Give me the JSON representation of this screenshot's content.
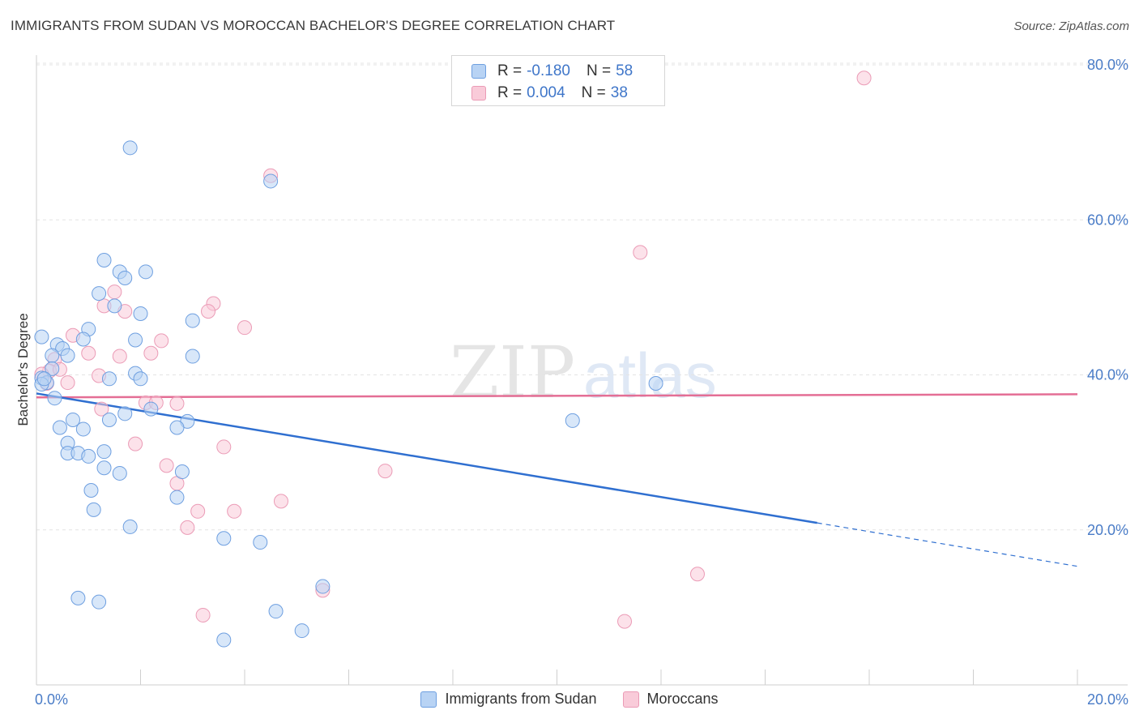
{
  "title": "IMMIGRANTS FROM SUDAN VS MOROCCAN BACHELOR'S DEGREE CORRELATION CHART",
  "source": "Source: ZipAtlas.com",
  "watermark": {
    "zip": "ZIP",
    "atlas": "atlas"
  },
  "colors": {
    "sudan_fill": "#b8d3f4",
    "sudan_stroke": "#6e9fe0",
    "sudan_line": "#2f6fd0",
    "moroccan_fill": "#f9cbd9",
    "moroccan_stroke": "#eb9bb6",
    "moroccan_line": "#e46e95",
    "tick_text": "#4a7cc7",
    "grid": "#e4e4e4"
  },
  "legend": {
    "rows": [
      {
        "r_label": "R =",
        "r_value": "-0.180",
        "n_label": "N =",
        "n_value": "58"
      },
      {
        "r_label": "R =",
        "r_value": "0.004",
        "n_label": "N =",
        "n_value": "38"
      }
    ]
  },
  "bottom_legend": {
    "sudan": "Immigrants from Sudan",
    "moroccan": "Moroccans"
  },
  "chart_data": {
    "type": "scatter",
    "title": "IMMIGRANTS FROM SUDAN VS MOROCCAN BACHELOR'S DEGREE CORRELATION CHART",
    "xlabel": "",
    "ylabel": "Bachelor's Degree",
    "xlim": [
      0,
      20
    ],
    "ylim": [
      0,
      82
    ],
    "x_tick_labels": [
      "0.0%",
      "20.0%"
    ],
    "y_ticks": [
      20,
      40,
      60,
      80
    ],
    "y_tick_labels": [
      "20.0%",
      "40.0%",
      "60.0%",
      "80.0%"
    ],
    "series": [
      {
        "name": "Immigrants from Sudan",
        "points": [
          [
            1.8,
            69.3
          ],
          [
            4.5,
            65.0
          ],
          [
            1.3,
            54.8
          ],
          [
            1.6,
            53.3
          ],
          [
            2.1,
            53.3
          ],
          [
            1.7,
            52.5
          ],
          [
            1.2,
            50.5
          ],
          [
            1.5,
            48.9
          ],
          [
            2.0,
            47.9
          ],
          [
            3.0,
            47.0
          ],
          [
            1.0,
            45.9
          ],
          [
            0.1,
            44.9
          ],
          [
            0.9,
            44.6
          ],
          [
            1.9,
            44.5
          ],
          [
            0.4,
            43.9
          ],
          [
            0.5,
            43.4
          ],
          [
            0.3,
            42.5
          ],
          [
            0.6,
            42.5
          ],
          [
            3.0,
            42.4
          ],
          [
            0.3,
            40.8
          ],
          [
            1.9,
            40.2
          ],
          [
            0.1,
            39.6
          ],
          [
            1.4,
            39.5
          ],
          [
            2.0,
            39.5
          ],
          [
            0.2,
            39.0
          ],
          [
            0.1,
            38.8
          ],
          [
            11.9,
            38.9
          ],
          [
            0.35,
            37.0
          ],
          [
            2.2,
            35.6
          ],
          [
            1.7,
            35.0
          ],
          [
            0.7,
            34.2
          ],
          [
            1.4,
            34.2
          ],
          [
            2.9,
            34.0
          ],
          [
            10.3,
            34.1
          ],
          [
            0.45,
            33.2
          ],
          [
            0.9,
            33.0
          ],
          [
            2.7,
            33.2
          ],
          [
            0.6,
            31.2
          ],
          [
            0.6,
            29.9
          ],
          [
            0.8,
            29.9
          ],
          [
            1.3,
            30.1
          ],
          [
            1.0,
            29.5
          ],
          [
            1.3,
            28.0
          ],
          [
            1.6,
            27.3
          ],
          [
            2.8,
            27.5
          ],
          [
            1.05,
            25.1
          ],
          [
            2.7,
            24.2
          ],
          [
            1.1,
            22.6
          ],
          [
            1.8,
            20.4
          ],
          [
            3.6,
            18.9
          ],
          [
            4.3,
            18.4
          ],
          [
            5.5,
            12.7
          ],
          [
            0.8,
            11.2
          ],
          [
            1.2,
            10.7
          ],
          [
            4.6,
            9.5
          ],
          [
            5.1,
            7.0
          ],
          [
            3.6,
            5.8
          ],
          [
            0.15,
            39.5
          ]
        ],
        "trend": {
          "x_start": 0,
          "y_start": 37.6,
          "x_solid_end": 15.0,
          "y_solid_end": 20.9,
          "x_end": 20,
          "y_end": 15.3
        }
      },
      {
        "name": "Moroccans",
        "points": [
          [
            15.9,
            78.3
          ],
          [
            4.5,
            65.7
          ],
          [
            11.6,
            55.8
          ],
          [
            1.5,
            50.7
          ],
          [
            3.4,
            49.2
          ],
          [
            1.3,
            48.9
          ],
          [
            1.7,
            48.2
          ],
          [
            3.3,
            48.2
          ],
          [
            4.0,
            46.1
          ],
          [
            0.7,
            45.1
          ],
          [
            2.4,
            44.4
          ],
          [
            1.0,
            42.8
          ],
          [
            1.6,
            42.4
          ],
          [
            2.2,
            42.8
          ],
          [
            0.35,
            42.0
          ],
          [
            0.25,
            40.5
          ],
          [
            0.45,
            40.7
          ],
          [
            1.2,
            39.9
          ],
          [
            0.6,
            39.0
          ],
          [
            0.2,
            38.9
          ],
          [
            2.1,
            36.4
          ],
          [
            2.3,
            36.4
          ],
          [
            2.7,
            36.3
          ],
          [
            1.25,
            35.6
          ],
          [
            1.9,
            31.1
          ],
          [
            3.6,
            30.7
          ],
          [
            2.5,
            28.3
          ],
          [
            6.7,
            27.6
          ],
          [
            2.7,
            26.0
          ],
          [
            4.7,
            23.7
          ],
          [
            3.1,
            22.4
          ],
          [
            3.8,
            22.4
          ],
          [
            2.9,
            20.3
          ],
          [
            12.7,
            14.3
          ],
          [
            5.5,
            12.2
          ],
          [
            3.2,
            9.0
          ],
          [
            11.3,
            8.2
          ],
          [
            0.1,
            40.1
          ]
        ],
        "trend": {
          "x_start": 0,
          "y_start": 37.1,
          "x_end": 20,
          "y_end": 37.5
        }
      }
    ]
  }
}
